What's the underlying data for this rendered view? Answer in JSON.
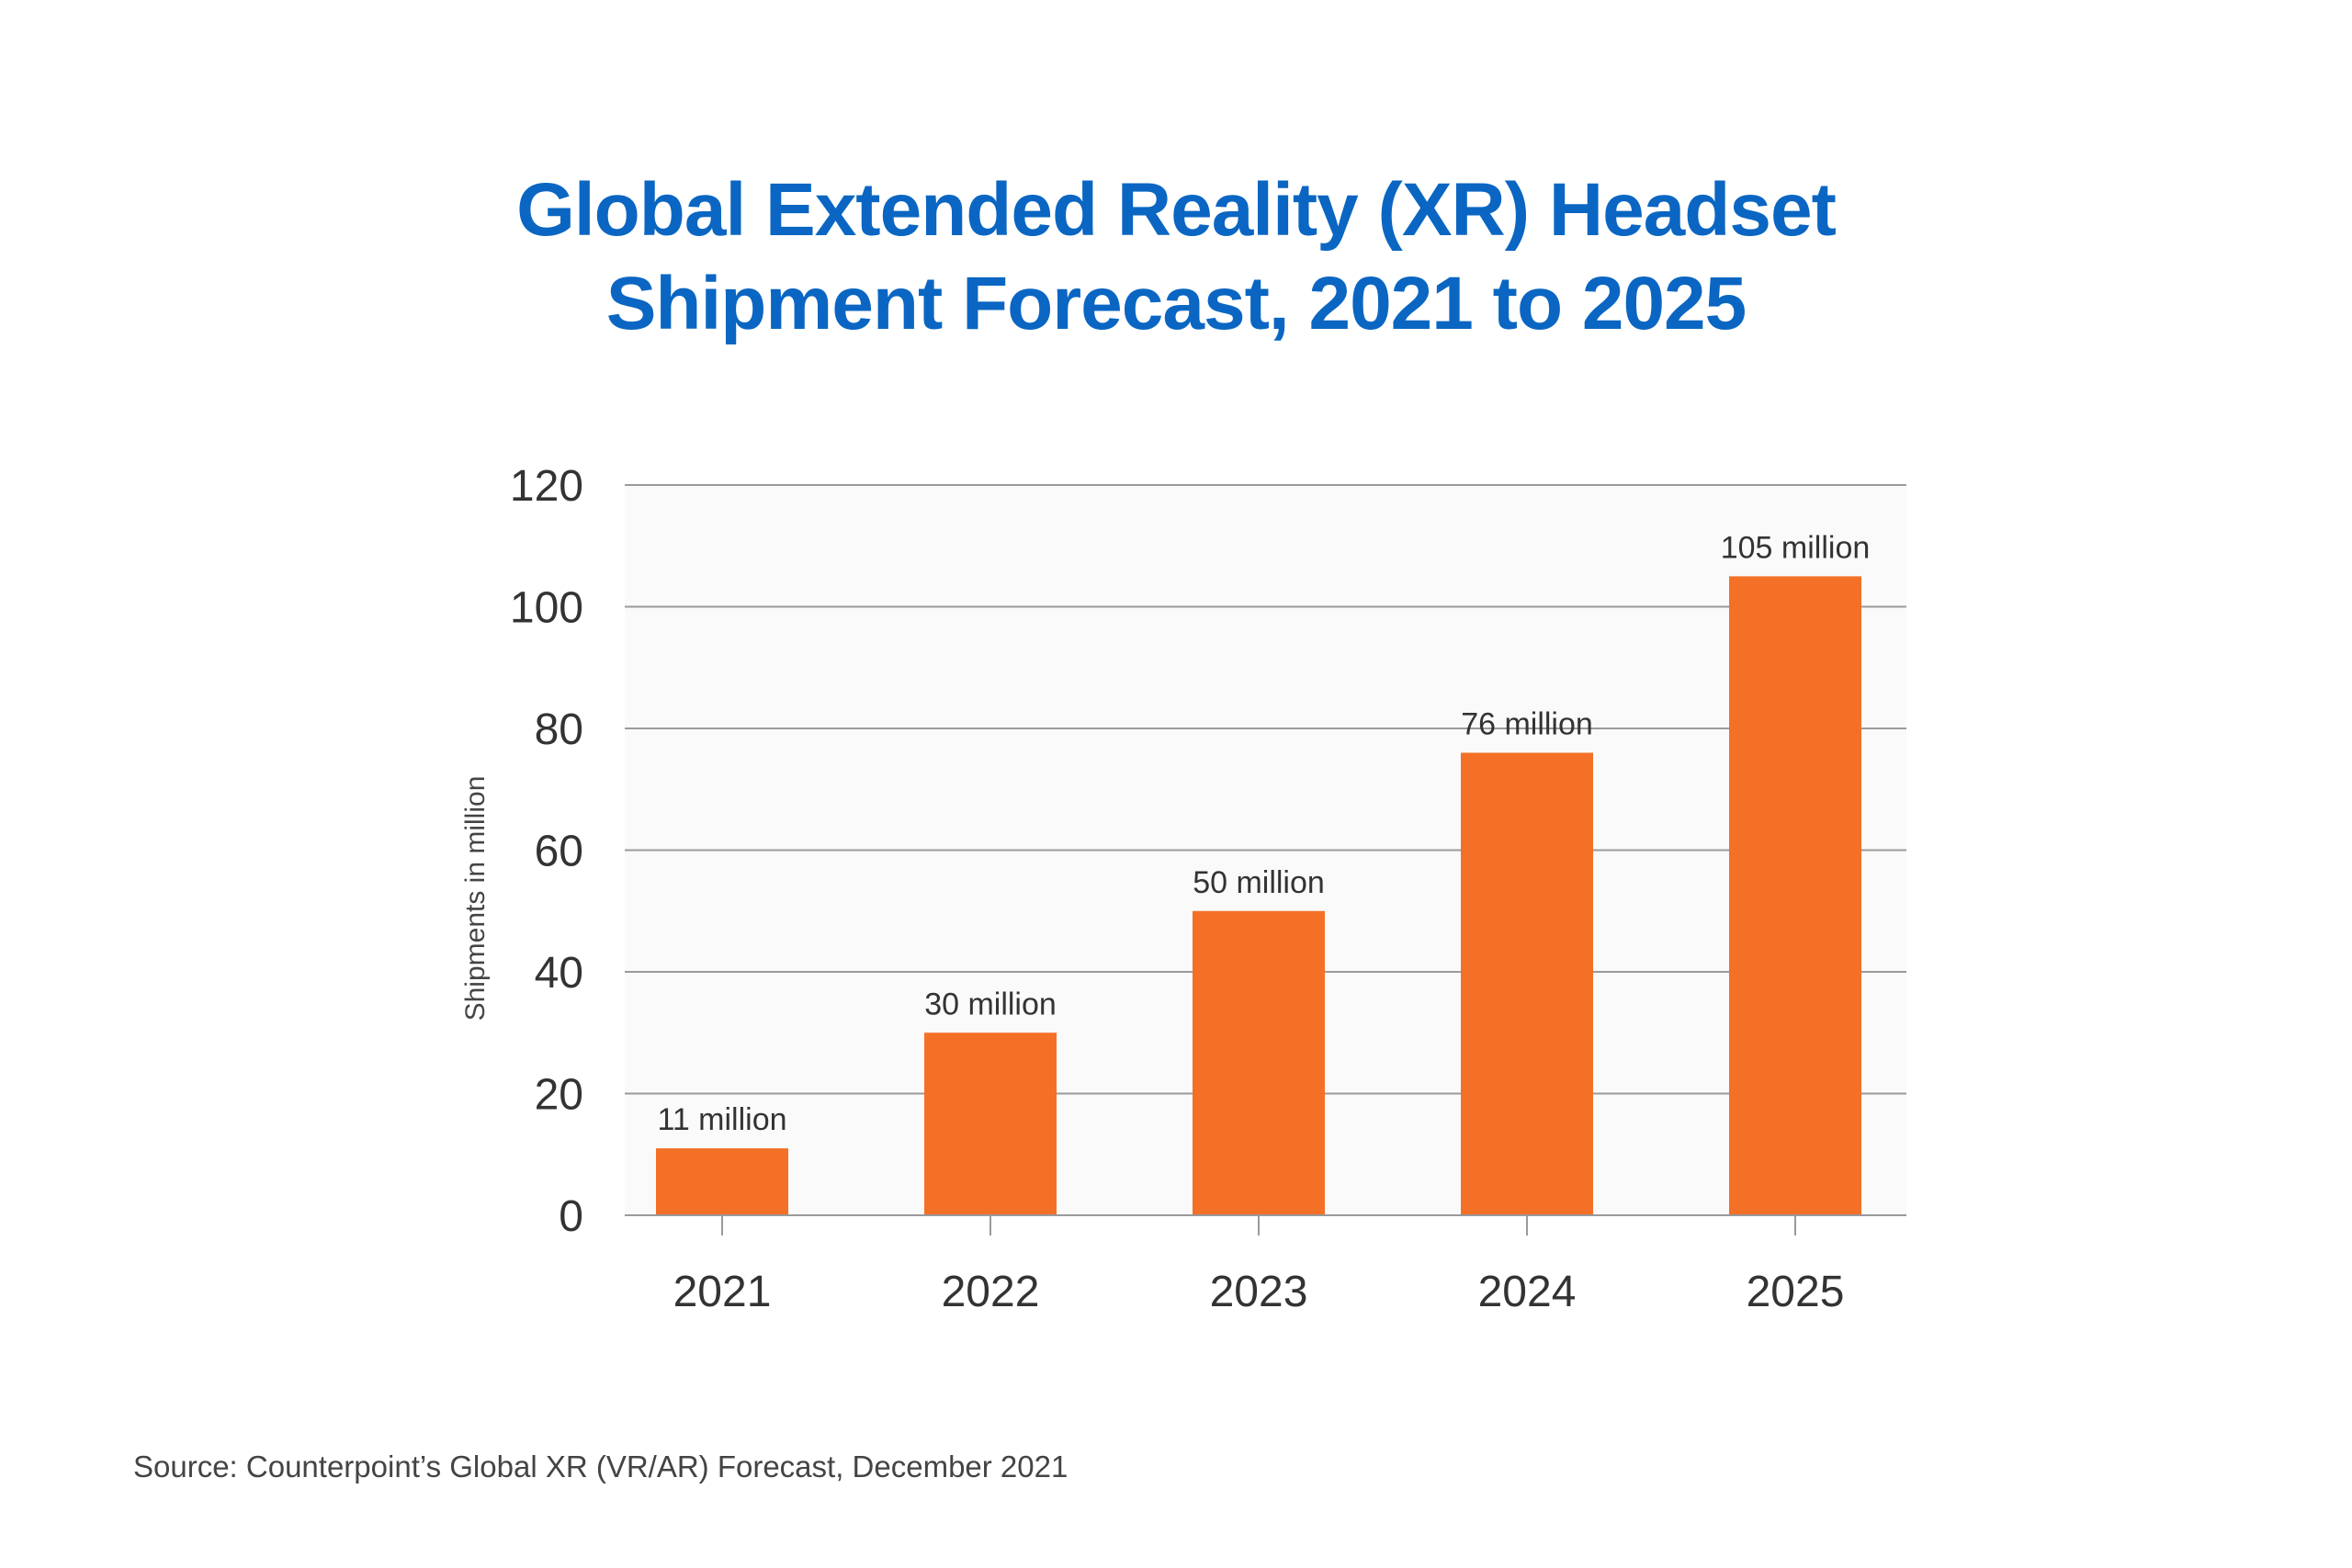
{
  "chart_data": {
    "type": "bar",
    "title": [
      "Global Extended Reality (XR) Headset",
      "Shipment Forecast, 2021 to 2025"
    ],
    "xlabel": "",
    "ylabel": "Shipments in million",
    "categories": [
      "2021",
      "2022",
      "2023",
      "2024",
      "2025"
    ],
    "values": [
      11,
      30,
      50,
      76,
      105
    ],
    "data_labels": [
      "11 million",
      "30 million",
      "50 million",
      "76 million",
      "105 million"
    ],
    "ylim": [
      0,
      120
    ],
    "yticks": [
      0,
      20,
      40,
      60,
      80,
      100,
      120
    ],
    "grid": true,
    "bar_color": "#f47027",
    "title_color": "#0a66c2"
  },
  "source": "Source: Counterpoint’s Global XR (VR/AR) Forecast, December 2021"
}
